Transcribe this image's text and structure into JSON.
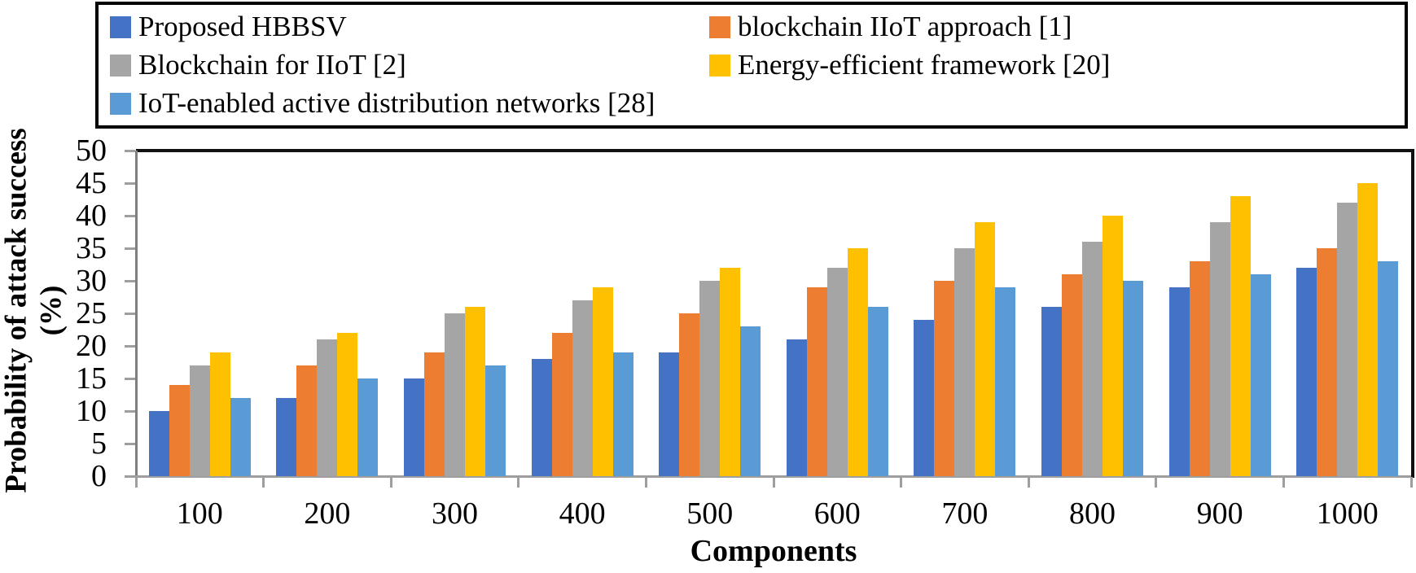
{
  "chart_data": {
    "type": "bar",
    "categories": [
      "100",
      "200",
      "300",
      "400",
      "500",
      "600",
      "700",
      "800",
      "900",
      "1000"
    ],
    "series": [
      {
        "name": "Proposed HBBSV",
        "color": "#4472C4",
        "values": [
          10,
          12,
          15,
          18,
          19,
          21,
          24,
          26,
          29,
          32
        ]
      },
      {
        "name": "blockchain IIoT approach [1]",
        "color": "#ED7D31",
        "values": [
          14,
          17,
          19,
          22,
          25,
          29,
          30,
          31,
          33,
          35
        ]
      },
      {
        "name": "Blockchain for IIoT [2]",
        "color": "#A5A5A5",
        "values": [
          17,
          21,
          25,
          27,
          30,
          32,
          35,
          36,
          39,
          42
        ]
      },
      {
        "name": "Energy-efficient framework [20]",
        "color": "#FFC000",
        "values": [
          19,
          22,
          26,
          29,
          32,
          35,
          39,
          40,
          43,
          45
        ]
      },
      {
        "name": "IoT-enabled active distribution networks [28]",
        "color": "#5B9BD5",
        "values": [
          12,
          15,
          17,
          19,
          23,
          26,
          29,
          30,
          31,
          33
        ]
      }
    ],
    "xlabel": "Components",
    "ylabel": "Probability of attack success (%)",
    "ylabel_lines": [
      "Probability of attack success",
      "(%)"
    ],
    "ylim": [
      0,
      50
    ],
    "ytick_step": 5,
    "legend_position": "top",
    "grid": false
  }
}
